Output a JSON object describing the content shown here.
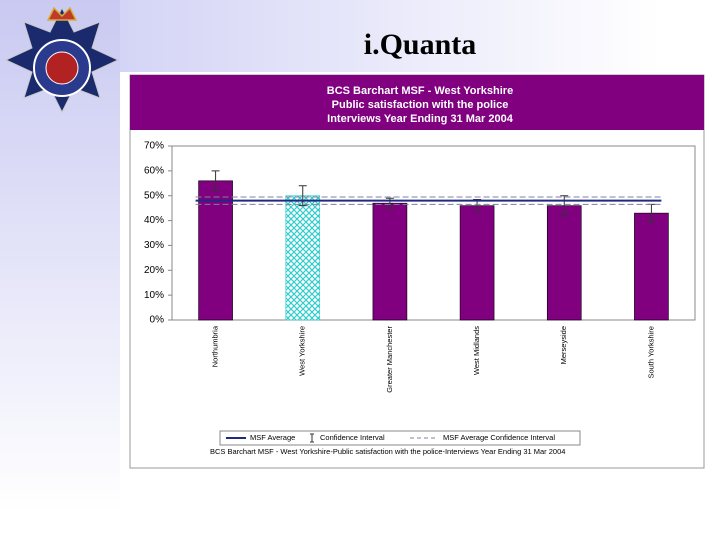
{
  "slide_title": "i.Quanta",
  "chart_data": {
    "type": "bar",
    "title_lines": [
      "BCS Barchart MSF - West Yorkshire",
      "Public satisfaction with the police",
      "Interviews Year Ending 31 Mar 2004"
    ],
    "categories": [
      "Northumbria",
      "West Yorkshire",
      "Greater Manchester",
      "West Midlands",
      "Merseyside",
      "South Yorkshire"
    ],
    "values": [
      56,
      50,
      47,
      46,
      46,
      43
    ],
    "errors": [
      4,
      4,
      2,
      2.5,
      4,
      3.5
    ],
    "color": "#800080",
    "highlight": {
      "category_index": 1,
      "color": "#33cccc"
    },
    "average": 48,
    "confidence_interval": [
      46.5,
      49.5
    ],
    "average_color": "#1f2a80",
    "ci_color": "#8080a0",
    "ylim": [
      0,
      70
    ],
    "yticks": [
      {
        "value": 0,
        "label": "0%"
      },
      {
        "value": 10,
        "label": "10%"
      },
      {
        "value": 20,
        "label": "20%"
      },
      {
        "value": 30,
        "label": "30%"
      },
      {
        "value": 40,
        "label": "40%"
      },
      {
        "value": 50,
        "label": "50%"
      },
      {
        "value": 60,
        "label": "60%"
      },
      {
        "value": 70,
        "label": "70%"
      }
    ],
    "legend": [
      "MSF Average",
      "Confidence Interval",
      "MSF Average Confidence Interval"
    ],
    "caption": "BCS Barchart MSF - West Yorkshire-Public satisfaction with the police-Interviews Year Ending 31 Mar 2004"
  }
}
